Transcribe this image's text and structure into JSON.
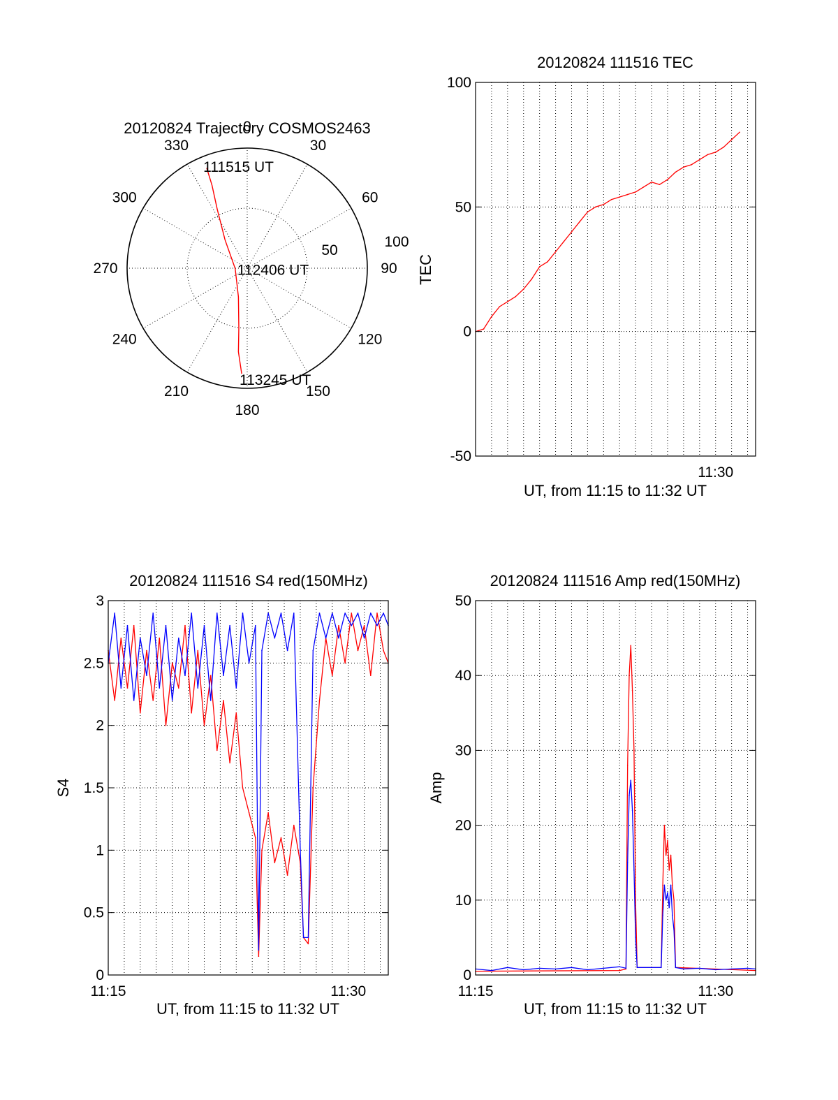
{
  "colors": {
    "red": "#ff0000",
    "blue": "#0000ff",
    "axis": "#000000"
  },
  "chart_data": [
    {
      "type": "polar",
      "title": "20120824 Trajectory COSMOS2463",
      "angle_labels": [
        "0",
        "30",
        "60",
        "90",
        "120",
        "150",
        "180",
        "210",
        "240",
        "270",
        "300",
        "330"
      ],
      "radius_labels": [
        "50",
        "100"
      ],
      "grid_angles": [
        0,
        30,
        60,
        90,
        120,
        150,
        180,
        210,
        240,
        270,
        300,
        330
      ],
      "rlim": [
        0,
        100
      ],
      "series": [
        {
          "color": "#ff0000",
          "points": [
            {
              "az": 338,
              "r": 90
            },
            {
              "az": 337,
              "r": 75
            },
            {
              "az": 333,
              "r": 55
            },
            {
              "az": 322,
              "r": 30
            },
            {
              "az": 268,
              "r": 10
            },
            {
              "az": 197,
              "r": 25
            },
            {
              "az": 188,
              "r": 50
            },
            {
              "az": 186,
              "r": 70
            },
            {
              "az": 183,
              "r": 88
            }
          ]
        }
      ],
      "annotations": [
        {
          "text": "111515 UT",
          "az": 353,
          "r": 85
        },
        {
          "text": "112406 UT",
          "az": 95,
          "r": 18
        },
        {
          "text": "113245 UT",
          "az": 168,
          "r": 95
        }
      ]
    },
    {
      "type": "line",
      "title": "20120824 111516 TEC",
      "xlabel": "UT, from 11:15 to 11:32 UT",
      "ylabel": "TEC",
      "xlim": [
        0,
        17.5
      ],
      "ylim": [
        -50,
        100
      ],
      "xticks": [
        {
          "value": 15,
          "label": "11:30"
        }
      ],
      "yticks": [
        {
          "value": -50,
          "label": "-50"
        },
        {
          "value": 0,
          "label": "0"
        },
        {
          "value": 50,
          "label": "50"
        },
        {
          "value": 100,
          "label": "100"
        }
      ],
      "xgrid_step": 1,
      "ygrid": [
        0,
        50
      ],
      "series": [
        {
          "color": "#ff0000",
          "points": [
            [
              0,
              0
            ],
            [
              0.5,
              1
            ],
            [
              1,
              6
            ],
            [
              1.5,
              10
            ],
            [
              2,
              12
            ],
            [
              2.5,
              14
            ],
            [
              3,
              17
            ],
            [
              3.5,
              21
            ],
            [
              4,
              26
            ],
            [
              4.5,
              28
            ],
            [
              5,
              32
            ],
            [
              5.5,
              36
            ],
            [
              6,
              40
            ],
            [
              6.5,
              44
            ],
            [
              7,
              48
            ],
            [
              7.5,
              50
            ],
            [
              8,
              51
            ],
            [
              8.5,
              53
            ],
            [
              9,
              54
            ],
            [
              9.5,
              55
            ],
            [
              10,
              56
            ],
            [
              10.5,
              58
            ],
            [
              11,
              60
            ],
            [
              11.5,
              59
            ],
            [
              12,
              61
            ],
            [
              12.5,
              64
            ],
            [
              13,
              66
            ],
            [
              13.5,
              67
            ],
            [
              14,
              69
            ],
            [
              14.5,
              71
            ],
            [
              15,
              72
            ],
            [
              15.5,
              74
            ],
            [
              16,
              77
            ],
            [
              16.5,
              80
            ]
          ]
        }
      ]
    },
    {
      "type": "line",
      "title": "20120824 111516 S4 red(150MHz)",
      "xlabel": "UT, from 11:15 to 11:32 UT",
      "ylabel": "S4",
      "xlim": [
        0,
        17.5
      ],
      "ylim": [
        0,
        3
      ],
      "xticks": [
        {
          "value": 0,
          "label": "11:15"
        },
        {
          "value": 15,
          "label": "11:30"
        }
      ],
      "yticks": [
        {
          "value": 0,
          "label": "0"
        },
        {
          "value": 0.5,
          "label": "0.5"
        },
        {
          "value": 1,
          "label": "1"
        },
        {
          "value": 1.5,
          "label": "1.5"
        },
        {
          "value": 2,
          "label": "2"
        },
        {
          "value": 2.5,
          "label": "2.5"
        },
        {
          "value": 3,
          "label": "3"
        }
      ],
      "xgrid_step": 1,
      "ygrid": [
        0.5,
        1,
        1.5,
        2,
        2.5
      ],
      "series": [
        {
          "color": "#ff0000",
          "points": [
            [
              0,
              2.6
            ],
            [
              0.4,
              2.2
            ],
            [
              0.8,
              2.7
            ],
            [
              1.2,
              2.3
            ],
            [
              1.6,
              2.8
            ],
            [
              2,
              2.1
            ],
            [
              2.4,
              2.6
            ],
            [
              2.8,
              2.2
            ],
            [
              3.2,
              2.7
            ],
            [
              3.6,
              2.0
            ],
            [
              4,
              2.5
            ],
            [
              4.4,
              2.3
            ],
            [
              4.8,
              2.8
            ],
            [
              5.2,
              2.1
            ],
            [
              5.6,
              2.6
            ],
            [
              6,
              2.0
            ],
            [
              6.4,
              2.4
            ],
            [
              6.8,
              1.8
            ],
            [
              7.2,
              2.2
            ],
            [
              7.6,
              1.7
            ],
            [
              8,
              2.1
            ],
            [
              8.4,
              1.5
            ],
            [
              8.8,
              1.3
            ],
            [
              9.2,
              1.1
            ],
            [
              9.4,
              0.15
            ],
            [
              9.6,
              1.0
            ],
            [
              10,
              1.3
            ],
            [
              10.4,
              0.9
            ],
            [
              10.8,
              1.1
            ],
            [
              11.2,
              0.8
            ],
            [
              11.6,
              1.2
            ],
            [
              12,
              0.9
            ],
            [
              12.2,
              0.3
            ],
            [
              12.5,
              0.25
            ],
            [
              12.8,
              1.5
            ],
            [
              13.2,
              2.2
            ],
            [
              13.6,
              2.7
            ],
            [
              14,
              2.4
            ],
            [
              14.4,
              2.8
            ],
            [
              14.8,
              2.5
            ],
            [
              15.2,
              2.9
            ],
            [
              15.6,
              2.6
            ],
            [
              16,
              2.8
            ],
            [
              16.4,
              2.4
            ],
            [
              16.8,
              2.9
            ],
            [
              17.2,
              2.6
            ],
            [
              17.5,
              2.5
            ]
          ]
        },
        {
          "color": "#0000ff",
          "points": [
            [
              0,
              2.5
            ],
            [
              0.4,
              2.9
            ],
            [
              0.8,
              2.3
            ],
            [
              1.2,
              2.8
            ],
            [
              1.6,
              2.2
            ],
            [
              2,
              2.7
            ],
            [
              2.4,
              2.4
            ],
            [
              2.8,
              2.9
            ],
            [
              3.2,
              2.3
            ],
            [
              3.6,
              2.8
            ],
            [
              4,
              2.2
            ],
            [
              4.4,
              2.7
            ],
            [
              4.8,
              2.4
            ],
            [
              5.2,
              2.9
            ],
            [
              5.6,
              2.3
            ],
            [
              6,
              2.8
            ],
            [
              6.4,
              2.2
            ],
            [
              6.8,
              2.9
            ],
            [
              7.2,
              2.4
            ],
            [
              7.6,
              2.8
            ],
            [
              8,
              2.3
            ],
            [
              8.4,
              2.9
            ],
            [
              8.8,
              2.5
            ],
            [
              9.2,
              2.8
            ],
            [
              9.4,
              0.2
            ],
            [
              9.6,
              2.6
            ],
            [
              10,
              2.9
            ],
            [
              10.4,
              2.7
            ],
            [
              10.8,
              2.9
            ],
            [
              11.2,
              2.6
            ],
            [
              11.6,
              2.9
            ],
            [
              12,
              1.0
            ],
            [
              12.2,
              0.3
            ],
            [
              12.5,
              0.3
            ],
            [
              12.8,
              2.6
            ],
            [
              13.2,
              2.9
            ],
            [
              13.6,
              2.7
            ],
            [
              14,
              2.9
            ],
            [
              14.4,
              2.7
            ],
            [
              14.8,
              2.9
            ],
            [
              15.2,
              2.8
            ],
            [
              15.6,
              2.9
            ],
            [
              16,
              2.7
            ],
            [
              16.4,
              2.9
            ],
            [
              16.8,
              2.8
            ],
            [
              17.2,
              2.9
            ],
            [
              17.5,
              2.8
            ]
          ]
        }
      ]
    },
    {
      "type": "line",
      "title": "20120824 111516 Amp red(150MHz)",
      "xlabel": "UT, from 11:15 to 11:32 UT",
      "ylabel": "Amp",
      "xlim": [
        0,
        17.5
      ],
      "ylim": [
        0,
        50
      ],
      "xticks": [
        {
          "value": 0,
          "label": "11:15"
        },
        {
          "value": 15,
          "label": "11:30"
        }
      ],
      "yticks": [
        {
          "value": 0,
          "label": "0"
        },
        {
          "value": 10,
          "label": "10"
        },
        {
          "value": 20,
          "label": "20"
        },
        {
          "value": 30,
          "label": "30"
        },
        {
          "value": 40,
          "label": "40"
        },
        {
          "value": 50,
          "label": "50"
        }
      ],
      "xgrid_step": 1,
      "ygrid": [
        10,
        20,
        30,
        40
      ],
      "series": [
        {
          "color": "#ff0000",
          "points": [
            [
              0,
              0.5
            ],
            [
              9,
              0.6
            ],
            [
              9.4,
              0.8
            ],
            [
              9.5,
              28
            ],
            [
              9.6,
              40
            ],
            [
              9.7,
              44
            ],
            [
              9.8,
              38
            ],
            [
              9.9,
              30
            ],
            [
              10,
              10
            ],
            [
              10.1,
              1
            ],
            [
              11.6,
              1
            ],
            [
              11.7,
              12
            ],
            [
              11.8,
              20
            ],
            [
              11.9,
              16
            ],
            [
              12,
              18
            ],
            [
              12.1,
              14
            ],
            [
              12.2,
              16
            ],
            [
              12.3,
              12
            ],
            [
              12.4,
              10
            ],
            [
              12.5,
              1
            ],
            [
              17.5,
              0.6
            ]
          ]
        },
        {
          "color": "#0000ff",
          "points": [
            [
              0,
              0.8
            ],
            [
              1,
              0.6
            ],
            [
              2,
              1.0
            ],
            [
              3,
              0.7
            ],
            [
              4,
              0.9
            ],
            [
              5,
              0.8
            ],
            [
              6,
              1.0
            ],
            [
              7,
              0.7
            ],
            [
              8,
              0.9
            ],
            [
              9,
              1.1
            ],
            [
              9.4,
              0.9
            ],
            [
              9.5,
              15
            ],
            [
              9.6,
              24
            ],
            [
              9.7,
              26
            ],
            [
              9.8,
              22
            ],
            [
              9.9,
              14
            ],
            [
              10,
              5
            ],
            [
              10.1,
              1
            ],
            [
              11.6,
              1
            ],
            [
              11.7,
              8
            ],
            [
              11.8,
              12
            ],
            [
              11.9,
              10
            ],
            [
              12,
              11
            ],
            [
              12.1,
              9
            ],
            [
              12.2,
              12
            ],
            [
              12.3,
              8
            ],
            [
              12.4,
              6
            ],
            [
              12.5,
              1
            ],
            [
              13,
              0.8
            ],
            [
              14,
              0.9
            ],
            [
              15,
              0.7
            ],
            [
              16,
              0.8
            ],
            [
              17,
              0.9
            ],
            [
              17.5,
              0.8
            ]
          ]
        }
      ]
    }
  ]
}
